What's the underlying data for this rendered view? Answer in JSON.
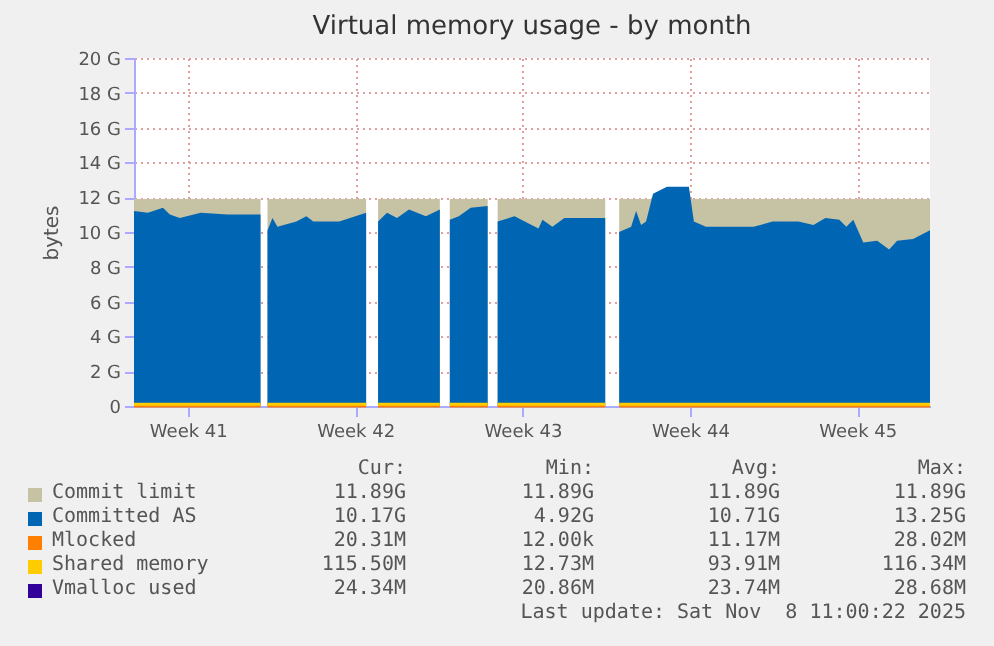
{
  "chart_data": {
    "type": "area",
    "title": "Virtual memory usage - by month",
    "ylabel": "bytes",
    "xlim": [
      "2025-10-06T00:00",
      "2025-11-08T07:00"
    ],
    "xticks": [
      {
        "value": "2025-10-08T06:00",
        "label": "Week 41"
      },
      {
        "value": "2025-10-15T06:00",
        "label": "Week 42"
      },
      {
        "value": "2025-10-22T06:00",
        "label": "Week 43"
      },
      {
        "value": "2025-10-29T06:00",
        "label": "Week 44"
      },
      {
        "value": "2025-11-05T06:00",
        "label": "Week 45"
      }
    ],
    "ylim": [
      0,
      20
    ],
    "yticks": [
      {
        "value": 0,
        "label": "0"
      },
      {
        "value": 2,
        "label": "2 G"
      },
      {
        "value": 4,
        "label": "4 G"
      },
      {
        "value": 6,
        "label": "6 G"
      },
      {
        "value": 8,
        "label": "8 G"
      },
      {
        "value": 10,
        "label": "10 G"
      },
      {
        "value": 12,
        "label": "12 G"
      },
      {
        "value": 14,
        "label": "14 G"
      },
      {
        "value": 16,
        "label": "16 G"
      },
      {
        "value": 18,
        "label": "18 G"
      },
      {
        "value": 20,
        "label": "20 G"
      }
    ],
    "grid": true,
    "legend": "bottom",
    "x": [
      "2025-10-06T00:00",
      "2025-10-11T07:00",
      "2025-10-11T11:00",
      "2025-10-11T14:00",
      "2025-10-15T17:00",
      "2025-10-15T23:00",
      "2025-10-16T05:00",
      "2025-10-18T19:00",
      "2025-10-19T00:00",
      "2025-10-19T05:00",
      "2025-10-20T19:00",
      "2025-10-21T00:00",
      "2025-10-21T05:00",
      "2025-10-25T17:00",
      "2025-10-26T00:00",
      "2025-10-26T07:00",
      "2025-11-08T07:00"
    ],
    "series": [
      {
        "name": "Commit limit",
        "color": "#c6c3a4",
        "values": [
          11.9,
          11.9,
          null,
          11.9,
          11.9,
          null,
          11.9,
          11.9,
          null,
          11.9,
          11.9,
          null,
          11.9,
          11.9,
          null,
          11.9,
          11.9
        ]
      },
      {
        "name": "Committed AS",
        "color": "#0066b3",
        "x": [
          "2025-10-06T00:00",
          "2025-10-06T14:00",
          "2025-10-07T05:00",
          "2025-10-07T12:00",
          "2025-10-07T22:00",
          "2025-10-08T19:00",
          "2025-10-09T22:00",
          "2025-10-10T12:00",
          "2025-10-11T07:00",
          "2025-10-11T11:00",
          "2025-10-11T14:00",
          "2025-10-11T19:00",
          "2025-10-12T00:00",
          "2025-10-12T19:00",
          "2025-10-13T05:00",
          "2025-10-13T12:00",
          "2025-10-14T14:00",
          "2025-10-15T17:00",
          "2025-10-15T23:00",
          "2025-10-16T05:00",
          "2025-10-16T14:00",
          "2025-10-17T00:00",
          "2025-10-17T12:00",
          "2025-10-18T05:00",
          "2025-10-18T19:00",
          "2025-10-19T00:00",
          "2025-10-19T05:00",
          "2025-10-19T14:00",
          "2025-10-20T02:00",
          "2025-10-20T19:00",
          "2025-10-21T00:00",
          "2025-10-21T05:00",
          "2025-10-21T22:00",
          "2025-10-22T22:00",
          "2025-10-23T02:00",
          "2025-10-23T12:00",
          "2025-10-24T00:00",
          "2025-10-25T17:00",
          "2025-10-26T00:00",
          "2025-10-26T07:00",
          "2025-10-26T19:00",
          "2025-10-27T00:00",
          "2025-10-27T05:00",
          "2025-10-27T10:00",
          "2025-10-27T17:00",
          "2025-10-28T00:00",
          "2025-10-28T07:00",
          "2025-10-29T05:00",
          "2025-10-29T10:00",
          "2025-10-29T22:00",
          "2025-10-31T05:00",
          "2025-10-31T22:00",
          "2025-11-01T17:00",
          "2025-11-02T19:00",
          "2025-11-03T10:00",
          "2025-11-03T22:00",
          "2025-11-04T12:00",
          "2025-11-04T19:00",
          "2025-11-05T02:00",
          "2025-11-05T12:00",
          "2025-11-06T02:00",
          "2025-11-06T14:00",
          "2025-11-06T22:00",
          "2025-11-07T14:00",
          "2025-11-08T07:00"
        ],
        "values": [
          11.2,
          11.1,
          11.4,
          11.0,
          10.8,
          11.1,
          11.0,
          11.0,
          11.0,
          null,
          10.1,
          10.8,
          10.3,
          10.6,
          10.9,
          10.6,
          10.6,
          11.1,
          null,
          10.6,
          11.1,
          10.8,
          11.3,
          10.9,
          11.3,
          null,
          10.7,
          10.9,
          11.4,
          11.5,
          null,
          10.6,
          10.9,
          10.2,
          10.7,
          10.3,
          10.8,
          10.8,
          null,
          10.0,
          10.3,
          11.2,
          10.4,
          10.6,
          12.2,
          12.4,
          12.6,
          12.6,
          10.6,
          10.3,
          10.3,
          10.3,
          10.6,
          10.6,
          10.4,
          10.8,
          10.7,
          10.3,
          10.7,
          9.4,
          9.5,
          9.0,
          9.5,
          9.6,
          10.1
        ]
      },
      {
        "name": "Mlocked",
        "color": "#ff8000",
        "type": "line",
        "values": [
          0.0,
          0.0,
          null,
          0.0,
          0.0,
          null,
          0.0,
          0.0,
          null,
          0.0,
          0.0,
          null,
          0.0,
          0.0,
          null,
          0.0,
          0.0
        ]
      },
      {
        "name": "Shared memory",
        "color": "#ffcc00",
        "type": "line",
        "values": [
          0.1,
          0.1,
          null,
          0.1,
          0.1,
          null,
          0.1,
          0.1,
          null,
          0.1,
          0.1,
          null,
          0.1,
          0.1,
          null,
          0.1,
          0.1
        ]
      },
      {
        "name": "Vmalloc used",
        "color": "#330099",
        "type": "line",
        "values": [
          null,
          null,
          null,
          null,
          null,
          null,
          null,
          null,
          null,
          null,
          null,
          null,
          null,
          null,
          null,
          null,
          null
        ]
      }
    ],
    "annotations": [
      "Cur:",
      "Min:",
      "Avg:",
      "Max:",
      "11.89G",
      "11.89G",
      "11.89G",
      "11.89G",
      "10.17G",
      "4.92G",
      "10.71G",
      "13.25G",
      "20.31M",
      "12.00k",
      "11.17M",
      "28.02M",
      "115.50M",
      "12.73M",
      "93.91M",
      "116.34M",
      "24.34M",
      "20.86M",
      "23.74M",
      "28.68M",
      "Last update: Sat Nov  8 11:00:22 2025"
    ]
  }
}
